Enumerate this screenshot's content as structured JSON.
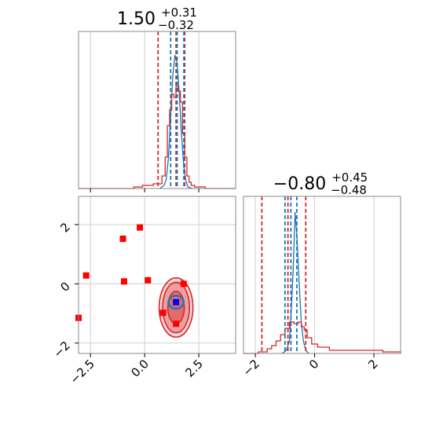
{
  "chart_data": [
    {
      "type": "line",
      "panel": "histogram-x",
      "title": "1.50",
      "title_upper": "+0.31",
      "title_lower": "−0.32",
      "xlim": [
        -3.05,
        4.2
      ],
      "grid": true,
      "series": [
        {
          "color": "#1f77b4",
          "style": "smooth",
          "x": [
            0.7,
            0.9,
            1.0,
            1.1,
            1.2,
            1.3,
            1.4,
            1.5,
            1.6,
            1.7,
            1.8,
            1.9,
            2.0,
            2.2
          ],
          "values": [
            0,
            0.02,
            0.06,
            0.2,
            0.45,
            0.72,
            0.85,
            0.8,
            0.6,
            0.35,
            0.15,
            0.05,
            0.01,
            0
          ]
        },
        {
          "color": "#d62728",
          "style": "step",
          "x": [
            -3.05,
            -1.0,
            -0.5,
            -0.1,
            0.4,
            0.8,
            0.95,
            1.05,
            1.15,
            1.25,
            1.35,
            1.45,
            1.55,
            1.65,
            1.75,
            1.85,
            1.95,
            2.05,
            2.15,
            2.3,
            2.6,
            2.8,
            4.2
          ],
          "values": [
            0,
            0,
            0.01,
            0.02,
            0.03,
            0.08,
            0.2,
            0.4,
            0.5,
            0.6,
            0.58,
            0.65,
            0.62,
            0.55,
            0.35,
            0.2,
            0.08,
            0.04,
            0.02,
            0.01,
            0.01,
            0,
            0
          ]
        }
      ],
      "vlines_blue": [
        1.2,
        1.5,
        1.81
      ],
      "vlines_red": [
        0.62,
        1.45,
        1.85
      ]
    },
    {
      "type": "scatter",
      "panel": "joint",
      "xlim": [
        -3.05,
        4.2
      ],
      "ylim": [
        -2.35,
        2.95
      ],
      "xticks": [
        -2.5,
        0.0,
        2.5
      ],
      "xtick_labels": [
        "−2.5",
        "0.0",
        "2.5"
      ],
      "yticks": [
        -2,
        0,
        2
      ],
      "ytick_labels": [
        "−2",
        "0",
        "2"
      ],
      "grid": true,
      "red_squares": [
        {
          "x": -3.05,
          "y": -1.15
        },
        {
          "x": -2.7,
          "y": 0.28
        },
        {
          "x": -1.0,
          "y": 1.52
        },
        {
          "x": -0.22,
          "y": 1.9
        },
        {
          "x": -0.95,
          "y": 0.08
        },
        {
          "x": 0.15,
          "y": 0.12
        },
        {
          "x": 0.85,
          "y": -0.98
        },
        {
          "x": 1.45,
          "y": -1.35
        },
        {
          "x": 1.8,
          "y": 0.0
        }
      ],
      "blue_square": {
        "x": 1.45,
        "y": -0.62
      },
      "contour_center": {
        "x": 1.45,
        "y": -0.8
      },
      "contours_red": [
        [
          0.78,
          1.0
        ],
        [
          0.62,
          0.85
        ],
        [
          0.38,
          0.55
        ]
      ],
      "contour_blue": [
        0.35,
        0.22
      ]
    },
    {
      "type": "line",
      "panel": "histogram-y",
      "title": "−0.80",
      "title_upper": "+0.45",
      "title_lower": "−0.48",
      "xlim": [
        -2.4,
        2.9
      ],
      "xticks": [
        -2,
        0,
        2
      ],
      "xtick_labels": [
        "−2",
        "0",
        "2"
      ],
      "grid": true,
      "series": [
        {
          "color": "#1f77b4",
          "style": "smooth",
          "x": [
            -1.1,
            -0.95,
            -0.85,
            -0.78,
            -0.72,
            -0.66,
            -0.6,
            -0.52,
            -0.45,
            -0.38,
            -0.3,
            -0.2
          ],
          "values": [
            0,
            0.02,
            0.08,
            0.3,
            0.55,
            0.9,
            0.75,
            0.45,
            0.2,
            0.08,
            0.02,
            0
          ]
        },
        {
          "color": "#d62728",
          "style": "step",
          "x": [
            -2.4,
            -1.9,
            -1.6,
            -1.45,
            -1.3,
            -1.15,
            -1.0,
            -0.85,
            -0.7,
            -0.55,
            -0.45,
            -0.35,
            -0.25,
            -0.1,
            0.1,
            0.5,
            1.0,
            1.5,
            2.0,
            2.3,
            2.9
          ],
          "values": [
            0,
            0.01,
            0.03,
            0.05,
            0.08,
            0.12,
            0.16,
            0.2,
            0.19,
            0.2,
            0.17,
            0.15,
            0.1,
            0.06,
            0.04,
            0.02,
            0.02,
            0.02,
            0.02,
            0.01,
            0
          ]
        }
      ],
      "vlines_blue": [
        -1.0,
        -0.8,
        -0.6
      ],
      "vlines_red": [
        -1.78,
        -0.9,
        -0.3
      ]
    }
  ]
}
